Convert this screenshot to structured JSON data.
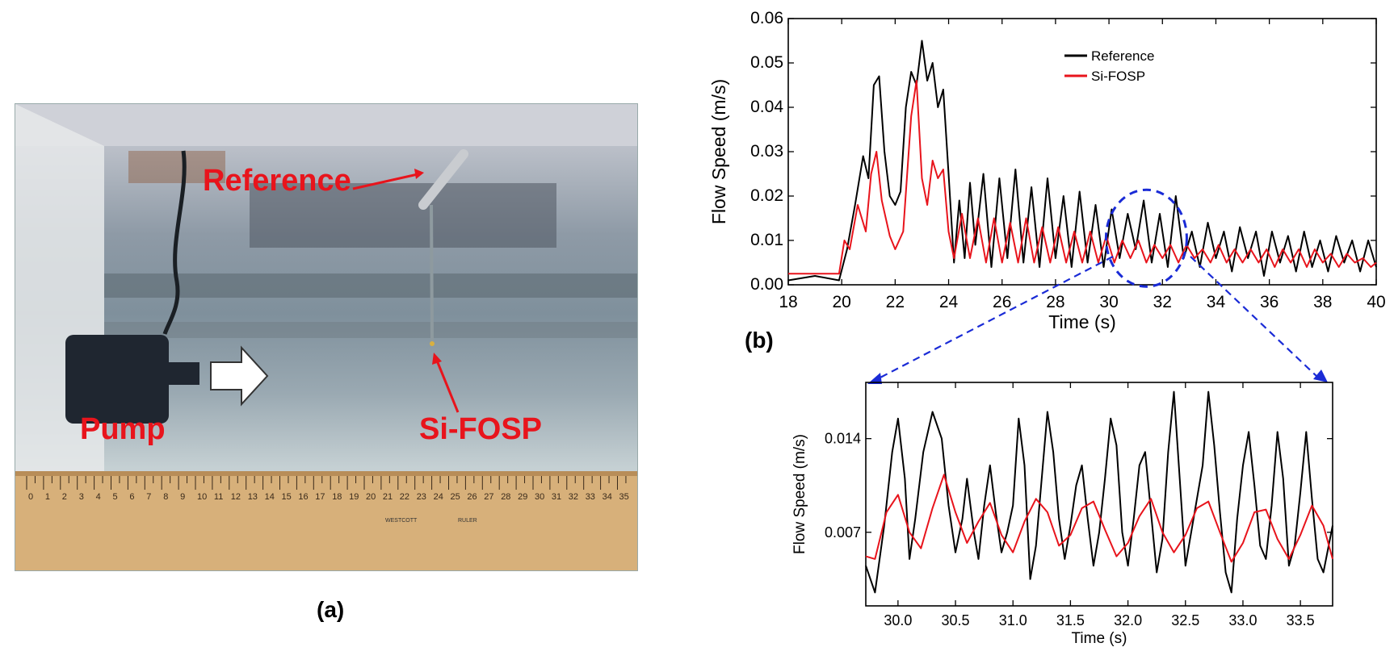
{
  "photo": {
    "labels": {
      "reference": "Reference",
      "sifosp": "Si-FOSP",
      "pump": "Pump"
    },
    "ruler_text": "WESTCOTT",
    "ruler_text2": "RULER",
    "ruler_numbers": [
      "0",
      "1",
      "2",
      "3",
      "4",
      "5",
      "6",
      "7",
      "8",
      "9",
      "10",
      "11",
      "12",
      "13",
      "14",
      "15",
      "16",
      "17",
      "18",
      "19",
      "20",
      "21",
      "22",
      "23",
      "24",
      "25",
      "26",
      "27",
      "28",
      "29",
      "30",
      "31",
      "32",
      "33",
      "34",
      "35"
    ],
    "caption": "(a)"
  },
  "panel_b_caption": "(b)",
  "colors": {
    "reference": "#000000",
    "sifosp": "#e8141c",
    "zoom": "#1a2bd6",
    "label": "#e8141c"
  },
  "chart_data": [
    {
      "type": "line",
      "title": "",
      "xlabel": "Time (s)",
      "ylabel": "Flow Speed (m/s)",
      "xlim": [
        18,
        40
      ],
      "ylim": [
        0.0,
        0.06
      ],
      "xticks": [
        18,
        20,
        22,
        24,
        26,
        28,
        30,
        32,
        34,
        36,
        38,
        40
      ],
      "yticks": [
        0.0,
        0.01,
        0.02,
        0.03,
        0.04,
        0.05,
        0.06
      ],
      "ytick_labels": [
        "0.00",
        "0.01",
        "0.02",
        "0.03",
        "0.04",
        "0.05",
        "0.06"
      ],
      "legend": {
        "position": "top-right",
        "entries": [
          "Reference",
          "Si-FOSP"
        ]
      },
      "series": [
        {
          "name": "Reference",
          "x": [
            18,
            19,
            19.9,
            20.2,
            20.5,
            20.8,
            21.0,
            21.2,
            21.4,
            21.6,
            21.8,
            22.0,
            22.2,
            22.4,
            22.6,
            22.8,
            23.0,
            23.2,
            23.4,
            23.6,
            23.8,
            24.0,
            24.2,
            24.4,
            24.6,
            24.8,
            25.0,
            25.3,
            25.6,
            25.9,
            26.2,
            26.5,
            26.8,
            27.1,
            27.4,
            27.7,
            28.0,
            28.3,
            28.6,
            28.9,
            29.2,
            29.5,
            29.8,
            30.1,
            30.4,
            30.7,
            31.0,
            31.3,
            31.6,
            31.9,
            32.2,
            32.5,
            32.8,
            33.1,
            33.4,
            33.7,
            34.0,
            34.3,
            34.6,
            34.9,
            35.2,
            35.5,
            35.8,
            36.1,
            36.4,
            36.7,
            37.0,
            37.3,
            37.6,
            37.9,
            38.2,
            38.5,
            38.8,
            39.1,
            39.4,
            39.7,
            40.0
          ],
          "values": [
            0.001,
            0.002,
            0.001,
            0.008,
            0.018,
            0.029,
            0.024,
            0.045,
            0.047,
            0.03,
            0.02,
            0.018,
            0.021,
            0.04,
            0.048,
            0.045,
            0.055,
            0.046,
            0.05,
            0.04,
            0.044,
            0.025,
            0.005,
            0.019,
            0.006,
            0.023,
            0.009,
            0.025,
            0.004,
            0.024,
            0.006,
            0.026,
            0.005,
            0.022,
            0.004,
            0.024,
            0.006,
            0.02,
            0.004,
            0.021,
            0.005,
            0.018,
            0.004,
            0.017,
            0.006,
            0.016,
            0.008,
            0.019,
            0.005,
            0.016,
            0.004,
            0.02,
            0.006,
            0.012,
            0.004,
            0.014,
            0.006,
            0.012,
            0.003,
            0.013,
            0.006,
            0.012,
            0.002,
            0.012,
            0.005,
            0.011,
            0.003,
            0.012,
            0.004,
            0.01,
            0.003,
            0.011,
            0.005,
            0.01,
            0.003,
            0.01,
            0.004
          ]
        },
        {
          "name": "Si-FOSP",
          "x": [
            18,
            19,
            19.9,
            20.1,
            20.3,
            20.6,
            20.9,
            21.1,
            21.3,
            21.5,
            21.8,
            22.0,
            22.3,
            22.6,
            22.8,
            23.0,
            23.2,
            23.4,
            23.6,
            23.8,
            24.0,
            24.2,
            24.5,
            24.8,
            25.1,
            25.4,
            25.7,
            26.0,
            26.3,
            26.6,
            26.9,
            27.2,
            27.5,
            27.8,
            28.1,
            28.4,
            28.7,
            29.0,
            29.3,
            29.6,
            29.9,
            30.2,
            30.5,
            30.8,
            31.1,
            31.4,
            31.7,
            32.0,
            32.3,
            32.6,
            32.9,
            33.2,
            33.5,
            33.8,
            34.1,
            34.4,
            34.7,
            35.0,
            35.3,
            35.6,
            35.9,
            36.2,
            36.5,
            36.8,
            37.1,
            37.4,
            37.7,
            38.0,
            38.3,
            38.6,
            38.9,
            39.2,
            39.5,
            39.8,
            40.0
          ],
          "values": [
            0.0025,
            0.0025,
            0.0025,
            0.01,
            0.008,
            0.018,
            0.012,
            0.025,
            0.03,
            0.019,
            0.011,
            0.008,
            0.012,
            0.038,
            0.046,
            0.024,
            0.018,
            0.028,
            0.024,
            0.026,
            0.012,
            0.006,
            0.016,
            0.006,
            0.015,
            0.005,
            0.015,
            0.005,
            0.014,
            0.005,
            0.015,
            0.005,
            0.013,
            0.005,
            0.013,
            0.005,
            0.012,
            0.005,
            0.012,
            0.005,
            0.011,
            0.005,
            0.01,
            0.006,
            0.01,
            0.005,
            0.009,
            0.006,
            0.009,
            0.005,
            0.009,
            0.006,
            0.008,
            0.005,
            0.009,
            0.005,
            0.008,
            0.005,
            0.008,
            0.005,
            0.008,
            0.004,
            0.008,
            0.005,
            0.008,
            0.004,
            0.008,
            0.005,
            0.007,
            0.004,
            0.007,
            0.005,
            0.006,
            0.004,
            0.005
          ]
        }
      ]
    },
    {
      "type": "line",
      "title": "",
      "xlabel": "Time (s)",
      "ylabel": "Flow Speed (m/s)",
      "xlim": [
        29.72,
        33.78
      ],
      "ylim": [
        0.0015,
        0.0182
      ],
      "xticks": [
        30.0,
        30.5,
        31.0,
        31.5,
        32.0,
        32.5,
        33.0,
        33.5
      ],
      "xtick_labels": [
        "30.0",
        "30.5",
        "31.0",
        "31.5",
        "32.0",
        "32.5",
        "33.0",
        "33.5"
      ],
      "yticks": [
        0.007,
        0.014
      ],
      "ytick_labels": [
        "0.007",
        "0.014"
      ],
      "series": [
        {
          "name": "Reference",
          "x": [
            29.72,
            29.8,
            29.88,
            29.95,
            30.0,
            30.06,
            30.1,
            30.15,
            30.22,
            30.3,
            30.38,
            30.44,
            30.5,
            30.56,
            30.6,
            30.66,
            30.7,
            30.75,
            30.8,
            30.85,
            30.9,
            30.95,
            31.0,
            31.05,
            31.1,
            31.15,
            31.2,
            31.25,
            31.3,
            31.35,
            31.4,
            31.45,
            31.5,
            31.55,
            31.6,
            31.65,
            31.7,
            31.75,
            31.8,
            31.85,
            31.9,
            31.95,
            32.0,
            32.05,
            32.1,
            32.15,
            32.2,
            32.25,
            32.3,
            32.35,
            32.4,
            32.45,
            32.5,
            32.55,
            32.6,
            32.65,
            32.7,
            32.75,
            32.8,
            32.85,
            32.9,
            32.95,
            33.0,
            33.05,
            33.1,
            33.15,
            33.2,
            33.25,
            33.3,
            33.35,
            33.4,
            33.45,
            33.5,
            33.55,
            33.6,
            33.65,
            33.7,
            33.78
          ],
          "values": [
            0.0045,
            0.0025,
            0.0075,
            0.013,
            0.0155,
            0.011,
            0.005,
            0.008,
            0.013,
            0.016,
            0.014,
            0.009,
            0.0055,
            0.008,
            0.011,
            0.007,
            0.005,
            0.009,
            0.012,
            0.0085,
            0.0055,
            0.007,
            0.009,
            0.0155,
            0.012,
            0.0035,
            0.006,
            0.011,
            0.016,
            0.013,
            0.008,
            0.005,
            0.0075,
            0.0105,
            0.012,
            0.008,
            0.0045,
            0.007,
            0.011,
            0.0155,
            0.0135,
            0.007,
            0.0045,
            0.008,
            0.012,
            0.013,
            0.0085,
            0.004,
            0.0065,
            0.013,
            0.0175,
            0.011,
            0.0045,
            0.007,
            0.0095,
            0.012,
            0.0175,
            0.0135,
            0.0085,
            0.004,
            0.0025,
            0.008,
            0.012,
            0.0145,
            0.0105,
            0.006,
            0.005,
            0.009,
            0.0145,
            0.011,
            0.0045,
            0.006,
            0.01,
            0.0145,
            0.0095,
            0.005,
            0.004,
            0.0075
          ]
        },
        {
          "name": "Si-FOSP",
          "x": [
            29.72,
            29.8,
            29.9,
            30.0,
            30.1,
            30.2,
            30.3,
            30.4,
            30.5,
            30.6,
            30.7,
            30.8,
            30.9,
            31.0,
            31.1,
            31.2,
            31.3,
            31.4,
            31.5,
            31.6,
            31.7,
            31.8,
            31.9,
            32.0,
            32.1,
            32.2,
            32.3,
            32.4,
            32.5,
            32.6,
            32.7,
            32.8,
            32.9,
            33.0,
            33.1,
            33.2,
            33.3,
            33.4,
            33.5,
            33.6,
            33.7,
            33.78
          ],
          "values": [
            0.0052,
            0.005,
            0.0085,
            0.0098,
            0.007,
            0.0058,
            0.0088,
            0.0113,
            0.0085,
            0.0062,
            0.0078,
            0.0092,
            0.0068,
            0.0055,
            0.0078,
            0.0095,
            0.0085,
            0.006,
            0.0068,
            0.0088,
            0.0093,
            0.0072,
            0.0052,
            0.0062,
            0.0082,
            0.0095,
            0.007,
            0.0055,
            0.0068,
            0.0088,
            0.0093,
            0.007,
            0.0048,
            0.0062,
            0.0085,
            0.0087,
            0.0065,
            0.005,
            0.0068,
            0.009,
            0.0075,
            0.005
          ]
        }
      ]
    }
  ]
}
